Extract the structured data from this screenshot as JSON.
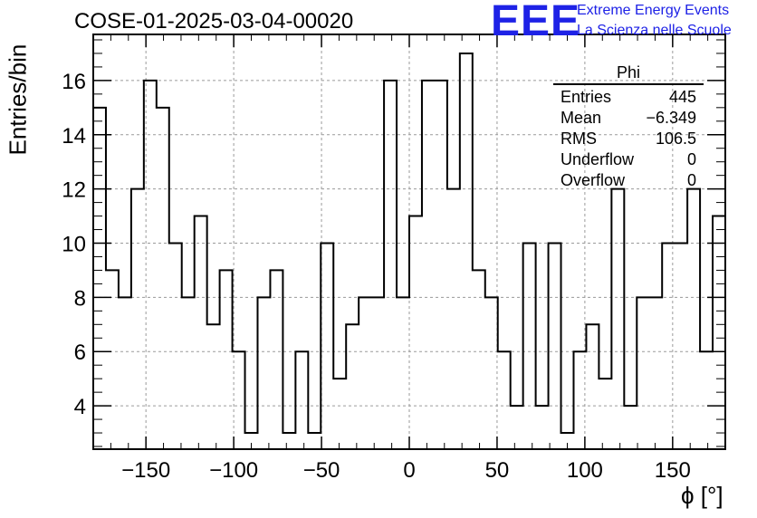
{
  "header": {
    "title": "COSE-01-2025-03-04-00020",
    "logo_text": "EEE",
    "logo_line1": "Extreme Energy Events",
    "logo_line2": "La Scienza nelle Scuole"
  },
  "colors": {
    "logo": "#1e22e6",
    "line": "#000000",
    "grid": "#9a9a9a"
  },
  "stats": {
    "title": "Phi",
    "rows": [
      {
        "label": "Entries",
        "value": "445"
      },
      {
        "label": "Mean",
        "value": "−6.349"
      },
      {
        "label": "RMS",
        "value": "106.5"
      },
      {
        "label": "Underflow",
        "value": "0"
      },
      {
        "label": "Overflow",
        "value": "0"
      }
    ]
  },
  "chart_data": {
    "type": "histogram",
    "title": "COSE-01-2025-03-04-00020",
    "xlabel": "ϕ [°]",
    "ylabel": "Entries/bin",
    "xlim": [
      -180,
      180
    ],
    "ylim": [
      2.4,
      17.7
    ],
    "bin_width": 7.2,
    "x_ticks": [
      -150,
      -100,
      -50,
      0,
      50,
      100,
      150
    ],
    "x_tick_labels": [
      "−150",
      "−100",
      "−50",
      "0",
      "50",
      "100",
      "150"
    ],
    "y_ticks": [
      4,
      6,
      8,
      10,
      12,
      14,
      16
    ],
    "y_tick_labels": [
      "4",
      "6",
      "8",
      "10",
      "12",
      "14",
      "16"
    ],
    "grid": true,
    "values": [
      15,
      9,
      8,
      12,
      16,
      15,
      10,
      8,
      11,
      7,
      9,
      6,
      3,
      8,
      9,
      3,
      6,
      3,
      10,
      5,
      7,
      8,
      8,
      16,
      8,
      11,
      16,
      16,
      12,
      17,
      9,
      8,
      6,
      4,
      10,
      4,
      10,
      3,
      6,
      7,
      5,
      12,
      4,
      8,
      8,
      10,
      10,
      12,
      6,
      11
    ]
  }
}
